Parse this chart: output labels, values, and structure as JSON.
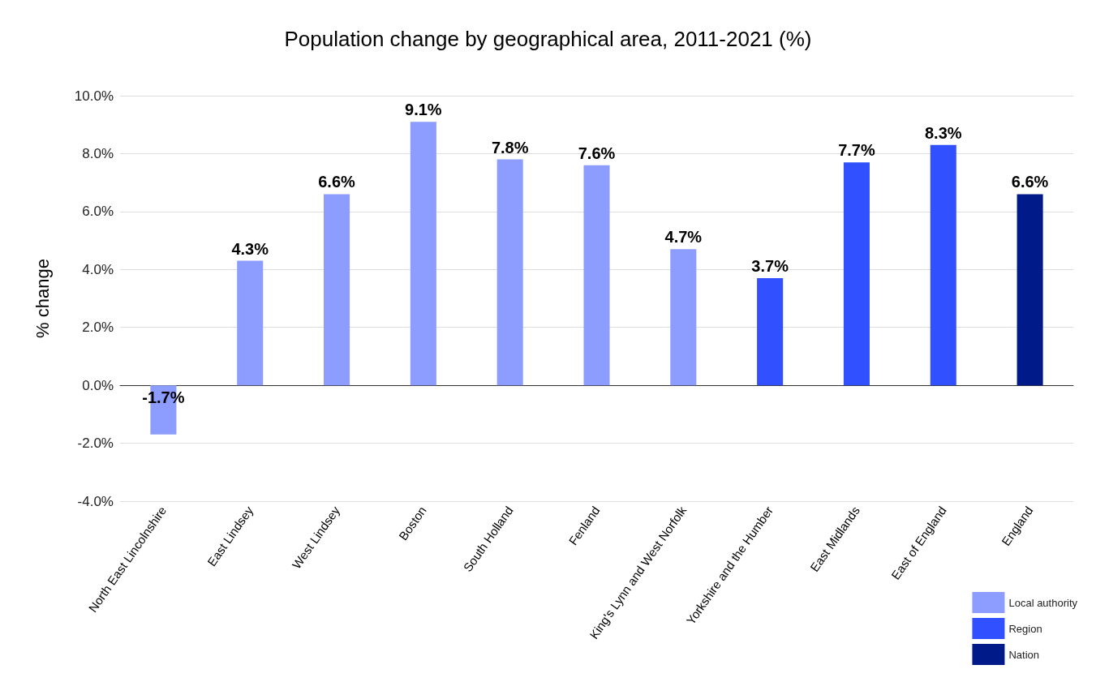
{
  "chart_data": {
    "type": "bar",
    "title": "Population change by geographical area, 2011-2021 (%)",
    "ylabel": "% change",
    "categories": [
      "North East Lincolnshire",
      "East Lindsey",
      "West Lindsey",
      "Boston",
      "South Holland",
      "Fenland",
      "King's Lynn and West Norfolk",
      "Yorkshire and the Humber",
      "East Midlands",
      "East of England",
      "England"
    ],
    "series": [
      {
        "name": "Local authority",
        "color": "#8c9cff",
        "values": [
          -1.7,
          4.3,
          6.6,
          9.1,
          7.8,
          7.6,
          4.7,
          null,
          null,
          null,
          null
        ],
        "value_labels": [
          "-1.7%",
          "4.3%",
          "6.6%",
          "9.1%",
          "7.8%",
          "7.6%",
          "4.7%",
          null,
          null,
          null,
          null
        ]
      },
      {
        "name": "Region",
        "color": "#3150ff",
        "values": [
          null,
          null,
          null,
          null,
          null,
          null,
          null,
          3.7,
          7.7,
          8.3,
          null
        ],
        "value_labels": [
          null,
          null,
          null,
          null,
          null,
          null,
          null,
          "3.7%",
          "7.7%",
          "8.3%",
          null
        ]
      },
      {
        "name": "Nation",
        "color": "#001a8a",
        "values": [
          null,
          null,
          null,
          null,
          null,
          null,
          null,
          null,
          null,
          null,
          6.6
        ],
        "value_labels": [
          null,
          null,
          null,
          null,
          null,
          null,
          null,
          null,
          null,
          null,
          "6.6%"
        ]
      }
    ],
    "ylim": [
      -4,
      10
    ],
    "yticks": [
      {
        "value": -4,
        "label": "-4.0%"
      },
      {
        "value": -2,
        "label": "-2.0%"
      },
      {
        "value": 0,
        "label": "0.0%"
      },
      {
        "value": 2,
        "label": "2.0%"
      },
      {
        "value": 4,
        "label": "4.0%"
      },
      {
        "value": 6,
        "label": "6.0%"
      },
      {
        "value": 8,
        "label": "8.0%"
      },
      {
        "value": 10,
        "label": "10.0%"
      }
    ],
    "grid": "y",
    "legend": "bottom right"
  }
}
